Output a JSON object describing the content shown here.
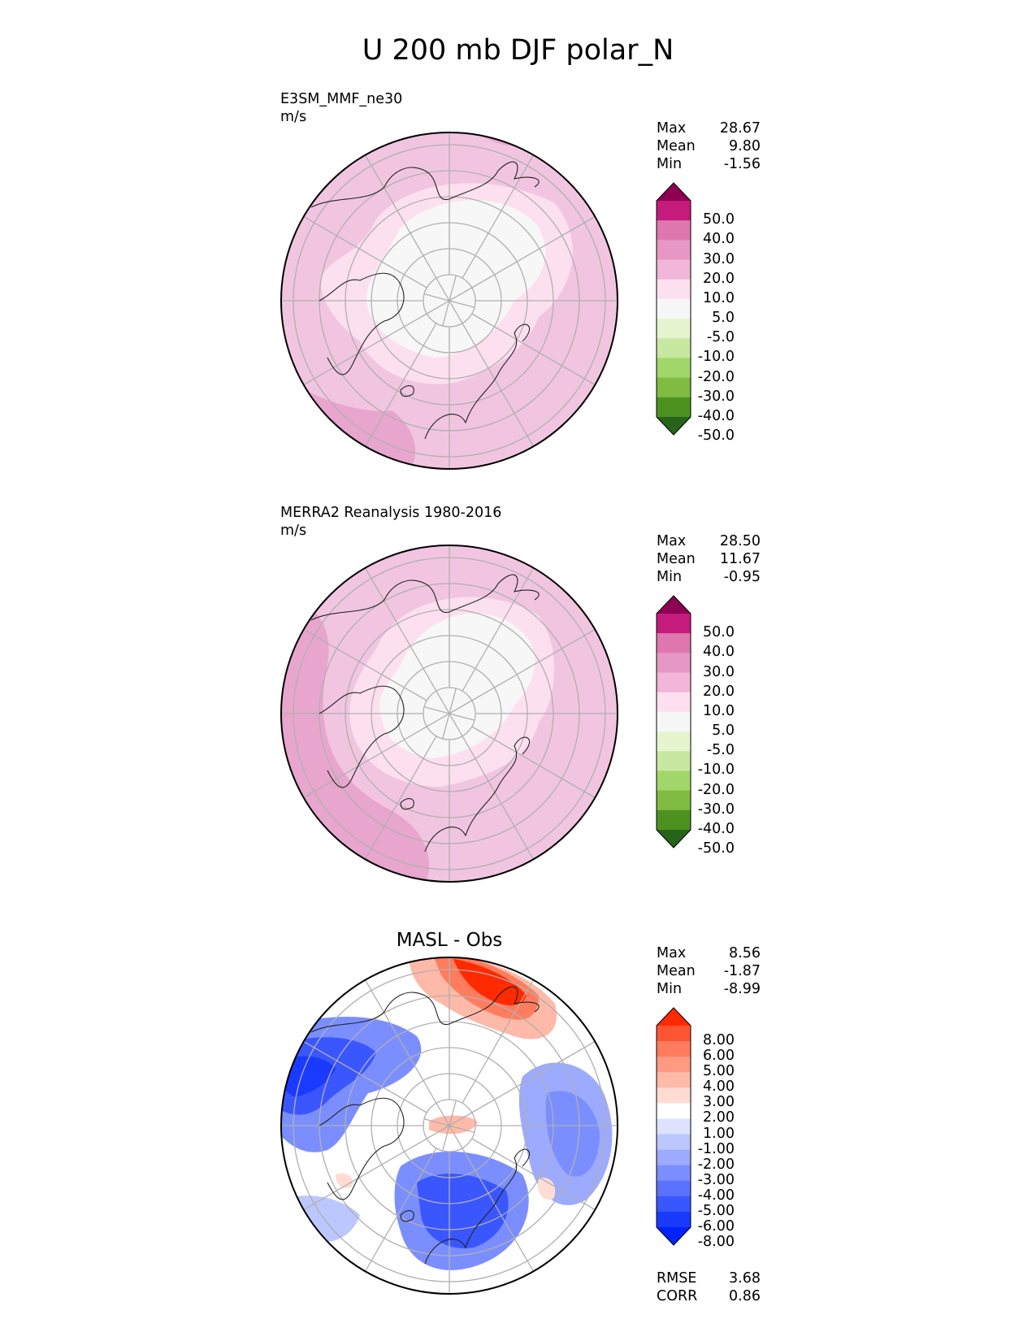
{
  "title": "U 200 mb DJF polar_N",
  "panels": [
    {
      "label": "E3SM_MMF_ne30",
      "units": "m/s",
      "stats": [
        {
          "label": "Max",
          "value": "28.67"
        },
        {
          "label": "Mean",
          "value": "9.80"
        },
        {
          "label": "Min",
          "value": "-1.56"
        }
      ],
      "colorbar": {
        "labels": [
          "50.0",
          "40.0",
          "30.0",
          "20.0",
          "10.0",
          "5.0",
          "-5.0",
          "-10.0",
          "-20.0",
          "-30.0",
          "-40.0",
          "-50.0"
        ],
        "colors": [
          "#8e0152",
          "#c51b7d",
          "#de77ae",
          "#e797c4",
          "#f1b6da",
          "#fde0ef",
          "#f7f7f7",
          "#e6f5d0",
          "#c8e7a1",
          "#a1d76a",
          "#7fbc41",
          "#4d9221",
          "#276419"
        ]
      }
    },
    {
      "label": "MERRA2 Reanalysis 1980-2016",
      "units": "m/s",
      "stats": [
        {
          "label": "Max",
          "value": "28.50"
        },
        {
          "label": "Mean",
          "value": "11.67"
        },
        {
          "label": "Min",
          "value": "-0.95"
        }
      ],
      "colorbar": {
        "labels": [
          "50.0",
          "40.0",
          "30.0",
          "20.0",
          "10.0",
          "5.0",
          "-5.0",
          "-10.0",
          "-20.0",
          "-30.0",
          "-40.0",
          "-50.0"
        ],
        "colors": [
          "#8e0152",
          "#c51b7d",
          "#de77ae",
          "#e797c4",
          "#f1b6da",
          "#fde0ef",
          "#f7f7f7",
          "#e6f5d0",
          "#c8e7a1",
          "#a1d76a",
          "#7fbc41",
          "#4d9221",
          "#276419"
        ]
      }
    },
    {
      "title": "MASL - Obs",
      "stats": [
        {
          "label": "Max",
          "value": "8.56"
        },
        {
          "label": "Mean",
          "value": "-1.87"
        },
        {
          "label": "Min",
          "value": "-8.99"
        }
      ],
      "metrics": [
        {
          "label": "RMSE",
          "value": "3.68"
        },
        {
          "label": "CORR",
          "value": "0.86"
        }
      ],
      "colorbar": {
        "labels": [
          "8.00",
          "6.00",
          "5.00",
          "4.00",
          "3.00",
          "2.00",
          "1.00",
          "-1.00",
          "-2.00",
          "-3.00",
          "-4.00",
          "-5.00",
          "-6.00",
          "-8.00"
        ],
        "colors": [
          "#ff2a00",
          "#ff5533",
          "#ff7c5e",
          "#ff9a82",
          "#ffb9a8",
          "#ffdcd3",
          "#ffffff",
          "#dde2ff",
          "#bcc6ff",
          "#9caaff",
          "#7b8eff",
          "#5a72ff",
          "#3a56ff",
          "#1a3aff",
          "#0022ff"
        ]
      }
    }
  ]
}
